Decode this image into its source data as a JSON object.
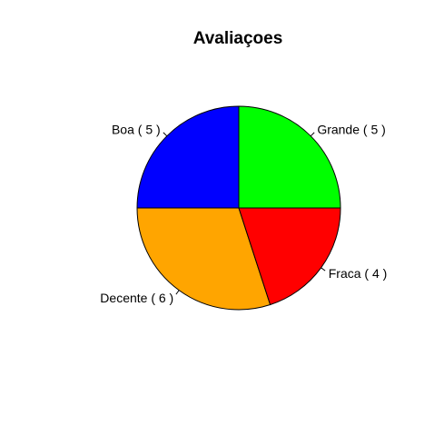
{
  "chart_data": {
    "type": "pie",
    "title": "Avaliaçoes",
    "start_angle_deg": 0,
    "direction": "counterclockwise",
    "slices": [
      {
        "label": "Grande ( 5 )",
        "value": 5,
        "color": "#00ff00"
      },
      {
        "label": "Boa ( 5 )",
        "value": 5,
        "color": "#0000ff"
      },
      {
        "label": "Decente ( 6 )",
        "value": 6,
        "color": "#ffa500"
      },
      {
        "label": "Fraca ( 4 )",
        "value": 4,
        "color": "#ff0000"
      }
    ]
  }
}
